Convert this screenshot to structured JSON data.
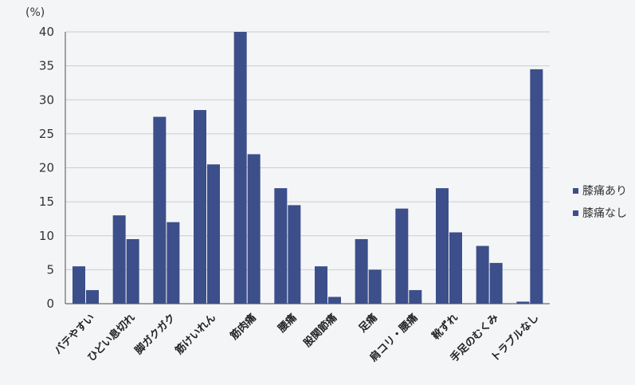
{
  "colors": {
    "series_a": "#3c4f8a",
    "series_b": "#3c4f8a",
    "grid": "#c9ccd3",
    "axis": "#6a6a6a",
    "background": "#f4f5f7"
  },
  "chart_data": {
    "type": "bar",
    "ylabel": "(%)",
    "ylim": [
      0,
      40
    ],
    "yticks": [
      0,
      5,
      10,
      15,
      20,
      25,
      30,
      35,
      40
    ],
    "grid": true,
    "legend_position": "right",
    "categories": [
      "バテやすい",
      "ひどい息切れ",
      "脚ガクガク",
      "筋けいれん",
      "筋肉痛",
      "腰痛",
      "股関節痛",
      "足痛",
      "肩コリ・腰痛",
      "靴ずれ",
      "手足のむくみ",
      "トラブルなし"
    ],
    "series": [
      {
        "name": "膝痛あり",
        "values": [
          5.5,
          13,
          27.5,
          28.5,
          40,
          17,
          5.5,
          9.5,
          14,
          17,
          8.5,
          0.3
        ]
      },
      {
        "name": "膝痛なし",
        "values": [
          2,
          9.5,
          12,
          20.5,
          22,
          14.5,
          1,
          5,
          2,
          10.5,
          6,
          34.5
        ]
      }
    ]
  }
}
